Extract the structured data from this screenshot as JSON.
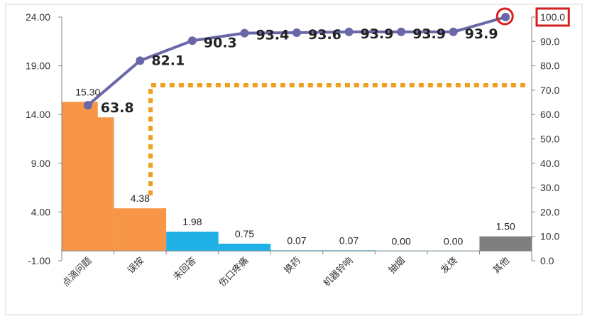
{
  "chart_data": {
    "type": "bar",
    "categories": [
      "点滴问题",
      "误按",
      "未回答",
      "伤口疼痛",
      "换药",
      "机器铃响",
      "抽烟",
      "发烧",
      "其他"
    ],
    "series": [
      {
        "values": [
          15.3,
          4.38,
          1.98,
          0.75,
          0.07,
          0.07,
          0.0,
          0.0,
          1.5
        ],
        "value_labels": [
          "15.30",
          "4.38",
          "1.98",
          "0.75",
          "0.07",
          "0.07",
          "0.00",
          "0.00",
          "1.50"
        ],
        "colors": [
          "#F79646",
          "#F79646",
          "#1FB1E6",
          "#1FB1E6",
          "#1FB1E6",
          "#1FB1E6",
          "#1FB1E6",
          "#1FB1E6",
          "#7F7F7F"
        ]
      },
      {
        "values": [
          63.8,
          82.1,
          90.3,
          93.4,
          93.6,
          93.9,
          93.9,
          93.9,
          100.0
        ],
        "value_labels": [
          "63.8",
          "82.1",
          "90.3",
          "93.4",
          "93.6",
          "93.9",
          "93.9",
          "93.9"
        ],
        "axis": "right",
        "color": "#6A67A8"
      }
    ],
    "y_left": {
      "min": -1.0,
      "max": 24.0,
      "ticks": [
        "24.00",
        "19.00",
        "14.00",
        "9.00",
        "4.00",
        "-1.00"
      ],
      "tick_values": [
        24,
        19,
        14,
        9,
        4,
        -1
      ]
    },
    "y_right": {
      "min": 0.0,
      "max": 100.0,
      "ticks": [
        "100.0",
        "90.0",
        "80.0",
        "70.0",
        "60.0",
        "50.0",
        "40.0",
        "30.0",
        "20.0",
        "10.0",
        "0.0"
      ],
      "tick_values": [
        100,
        90,
        80,
        70,
        60,
        50,
        40,
        30,
        20,
        10,
        0
      ]
    },
    "reference_line": {
      "value": 72,
      "axis": "right",
      "color": "#F0A020"
    },
    "highlight_color": "#D62020",
    "grid": false,
    "legend": "none"
  }
}
